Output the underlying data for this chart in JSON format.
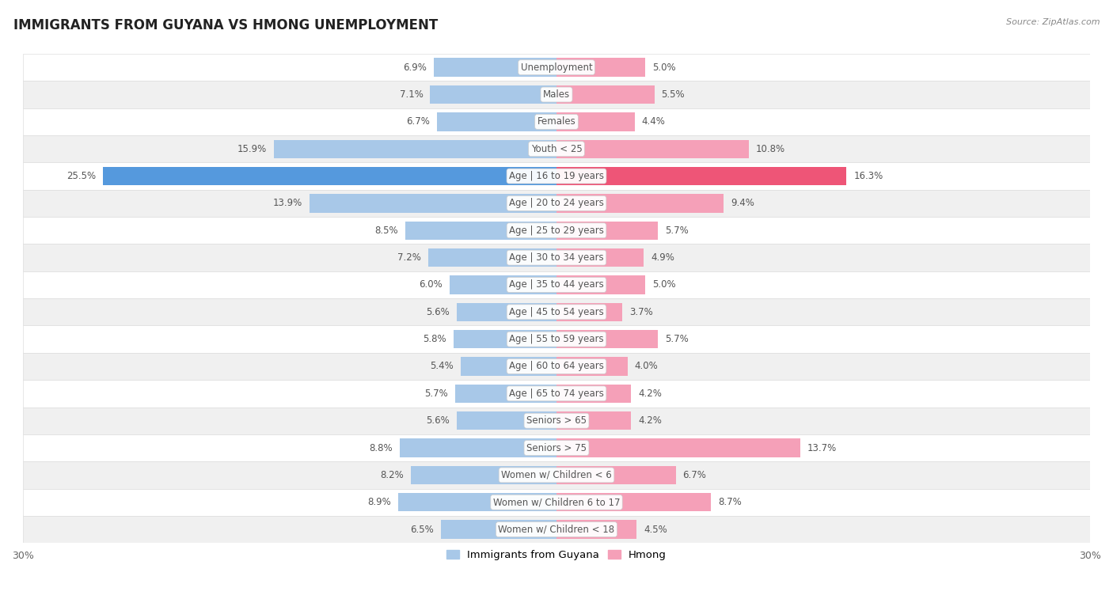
{
  "title": "IMMIGRANTS FROM GUYANA VS HMONG UNEMPLOYMENT",
  "source": "Source: ZipAtlas.com",
  "categories": [
    "Unemployment",
    "Males",
    "Females",
    "Youth < 25",
    "Age | 16 to 19 years",
    "Age | 20 to 24 years",
    "Age | 25 to 29 years",
    "Age | 30 to 34 years",
    "Age | 35 to 44 years",
    "Age | 45 to 54 years",
    "Age | 55 to 59 years",
    "Age | 60 to 64 years",
    "Age | 65 to 74 years",
    "Seniors > 65",
    "Seniors > 75",
    "Women w/ Children < 6",
    "Women w/ Children 6 to 17",
    "Women w/ Children < 18"
  ],
  "left_values": [
    6.9,
    7.1,
    6.7,
    15.9,
    25.5,
    13.9,
    8.5,
    7.2,
    6.0,
    5.6,
    5.8,
    5.4,
    5.7,
    5.6,
    8.8,
    8.2,
    8.9,
    6.5
  ],
  "right_values": [
    5.0,
    5.5,
    4.4,
    10.8,
    16.3,
    9.4,
    5.7,
    4.9,
    5.0,
    3.7,
    5.7,
    4.0,
    4.2,
    4.2,
    13.7,
    6.7,
    8.7,
    4.5
  ],
  "left_color": "#a8c8e8",
  "right_color": "#f5a0b8",
  "left_highlight_color": "#5599dd",
  "right_highlight_color": "#ee5577",
  "highlight_row": 4,
  "axis_max": 30.0,
  "legend_left": "Immigrants from Guyana",
  "legend_right": "Hmong",
  "background_color": "#ffffff",
  "row_bg_light": "#ffffff",
  "row_bg_dark": "#f0f0f0",
  "row_border_color": "#dddddd",
  "label_bg_color": "#ffffff",
  "label_text_color": "#555555",
  "value_text_color": "#555555"
}
